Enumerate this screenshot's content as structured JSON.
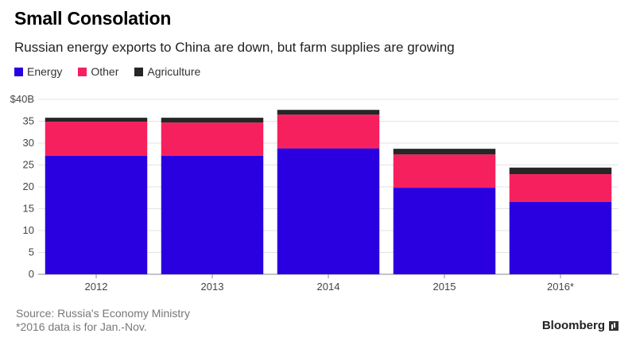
{
  "header": {
    "title": "Small Consolation",
    "subtitle": "Russian energy exports to China are down, but farm supplies are growing"
  },
  "legend": [
    {
      "label": "Energy",
      "color": "#2b00e0"
    },
    {
      "label": "Other",
      "color": "#f7205f"
    },
    {
      "label": "Agriculture",
      "color": "#262626"
    }
  ],
  "footer": {
    "source": "Source: Russia's Economy Ministry",
    "note": "*2016 data is for Jan.-Nov.",
    "brand": "Bloomberg"
  },
  "chart_data": {
    "type": "bar",
    "stacked": true,
    "categories": [
      "2012",
      "2013",
      "2014",
      "2015",
      "2016*"
    ],
    "series": [
      {
        "name": "Energy",
        "color": "#2b00e0",
        "values": [
          27.1,
          27.1,
          28.8,
          19.8,
          16.6
        ]
      },
      {
        "name": "Other",
        "color": "#f7205f",
        "values": [
          7.8,
          7.6,
          7.7,
          7.6,
          6.3
        ]
      },
      {
        "name": "Agriculture",
        "color": "#262626",
        "values": [
          0.9,
          1.1,
          1.1,
          1.3,
          1.5
        ]
      }
    ],
    "ylim": [
      0,
      40
    ],
    "yticks": [
      0,
      5,
      10,
      15,
      20,
      25,
      30,
      35,
      40
    ],
    "ytick_labels": [
      "0",
      "5",
      "10",
      "15",
      "20",
      "25",
      "30",
      "35",
      "$40B"
    ],
    "grid": true
  }
}
